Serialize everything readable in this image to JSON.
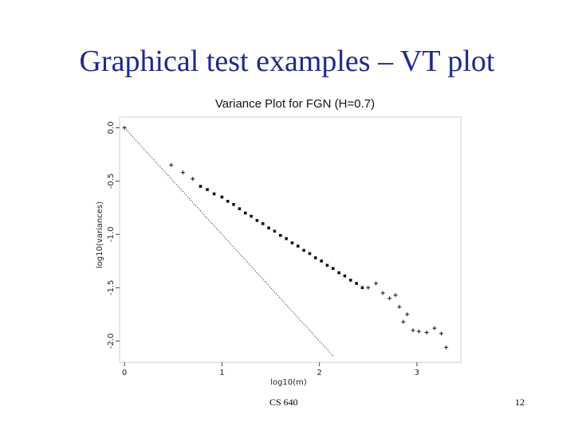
{
  "slide": {
    "title": "Graphical test examples – VT plot",
    "footer_center": "CS 640",
    "page_number": "12"
  },
  "colors": {
    "title": "#1f2a8c",
    "plot": "#111111"
  },
  "chart_data": {
    "type": "scatter",
    "title": "Variance Plot for FGN (H=0.7)",
    "xlabel": "log10(m)",
    "ylabel": "log10(variances)",
    "xlim": [
      -0.05,
      3.45
    ],
    "ylim": [
      -2.2,
      0.1
    ],
    "xticks": [
      0,
      1,
      2,
      3
    ],
    "xtick_labels": [
      "0",
      "1",
      "2",
      "3"
    ],
    "yticks": [
      0.0,
      -0.5,
      -1.0,
      -1.5,
      -2.0
    ],
    "ytick_labels": [
      "0.0",
      "-0.5",
      "-1.0",
      "-1.5",
      "-2.0"
    ],
    "grid": false,
    "series": [
      {
        "marker": "plus",
        "x": [
          0.0,
          0.48,
          0.6,
          0.7,
          2.5,
          2.58,
          2.65,
          2.72,
          2.78,
          2.82,
          2.86,
          2.9,
          2.96,
          3.02,
          3.1,
          3.18,
          3.25,
          3.3
        ],
        "y": [
          0.0,
          -0.35,
          -0.42,
          -0.48,
          -1.5,
          -1.46,
          -1.55,
          -1.6,
          -1.57,
          -1.68,
          -1.82,
          -1.75,
          -1.9,
          -1.91,
          -1.92,
          -1.88,
          -1.93,
          -2.06
        ]
      },
      {
        "marker": "square",
        "x": [
          0.78,
          0.85,
          0.92,
          1.0,
          1.06,
          1.12,
          1.18,
          1.24,
          1.3,
          1.36,
          1.42,
          1.48,
          1.54,
          1.6,
          1.66,
          1.72,
          1.78,
          1.84,
          1.9,
          1.96,
          2.02,
          2.08,
          2.14,
          2.2,
          2.26,
          2.32,
          2.38,
          2.44
        ],
        "y": [
          -0.55,
          -0.58,
          -0.62,
          -0.65,
          -0.69,
          -0.72,
          -0.76,
          -0.8,
          -0.83,
          -0.87,
          -0.9,
          -0.94,
          -0.97,
          -1.01,
          -1.04,
          -1.08,
          -1.11,
          -1.15,
          -1.18,
          -1.22,
          -1.25,
          -1.29,
          -1.32,
          -1.36,
          -1.39,
          -1.43,
          -1.46,
          -1.5
        ]
      }
    ],
    "reference_lines": [
      {
        "style": "dotted",
        "x": [
          0.0,
          2.15
        ],
        "y": [
          0.0,
          -2.15
        ]
      }
    ]
  }
}
